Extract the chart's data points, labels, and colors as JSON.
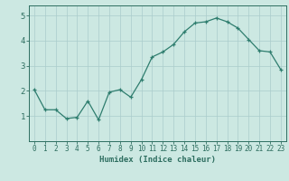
{
  "x": [
    0,
    1,
    2,
    3,
    4,
    5,
    6,
    7,
    8,
    9,
    10,
    11,
    12,
    13,
    14,
    15,
    16,
    17,
    18,
    19,
    20,
    21,
    22,
    23
  ],
  "y": [
    2.05,
    1.25,
    1.25,
    0.9,
    0.95,
    1.6,
    0.85,
    1.95,
    2.05,
    1.75,
    2.45,
    3.35,
    3.55,
    3.85,
    4.35,
    4.7,
    4.75,
    4.9,
    4.75,
    4.5,
    4.05,
    3.6,
    3.55,
    2.85
  ],
  "line_color": "#2e7d6e",
  "marker": "+",
  "marker_size": 3,
  "bg_color": "#cce8e2",
  "grid_color": "#aacccc",
  "xlabel": "Humidex (Indice chaleur)",
  "xlim": [
    -0.5,
    23.5
  ],
  "ylim": [
    0,
    5.4
  ],
  "yticks": [
    1,
    2,
    3,
    4,
    5
  ],
  "xticks": [
    0,
    1,
    2,
    3,
    4,
    5,
    6,
    7,
    8,
    9,
    10,
    11,
    12,
    13,
    14,
    15,
    16,
    17,
    18,
    19,
    20,
    21,
    22,
    23
  ],
  "line_color_dark": "#2e6e60",
  "tick_color": "#2e6e60",
  "label_fontsize": 6.5,
  "tick_fontsize": 5.5,
  "ytick_fontsize": 6.5
}
